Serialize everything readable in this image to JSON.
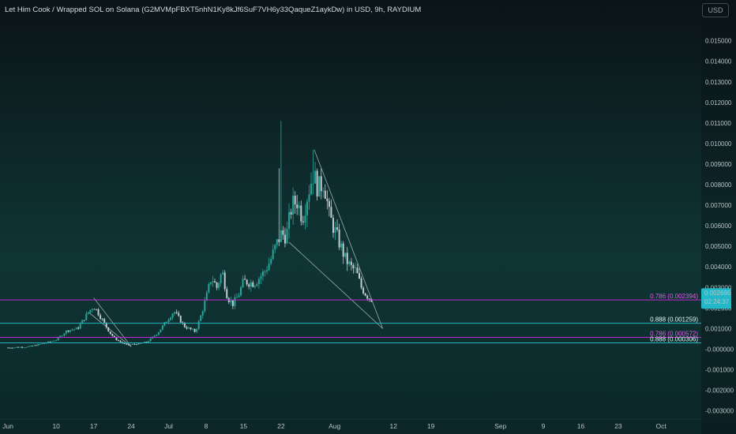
{
  "chart_title": "Let Him Cook / Wrapped SOL on Solana (G2MVMpFBXT5nhN1Ky8kJf6SuF7VH6y33QaqueZ1aykDw) in USD, 9h, RAYDIUM",
  "currency_button": "USD",
  "colors": {
    "up": "#26a69a",
    "down": "#c3cdd0",
    "fib_magenta": "#c026d3",
    "fib_cyan": "#2ab3c4",
    "price_tag": "#22b8c9"
  },
  "chart_data": {
    "type": "candlestick",
    "title": "Let Him Cook / Wrapped SOL on Solana (G2MVMpFBXT5nhN1Ky8kJf6SuF7VH6y33QaqueZ1aykDw) in USD, 9h, RAYDIUM",
    "currency": "USD",
    "y_ticks": [
      "0.015000",
      "0.014000",
      "0.013000",
      "0.012000",
      "0.011000",
      "0.010000",
      "0.009000",
      "0.008000",
      "0.007000",
      "0.006000",
      "0.005000",
      "0.004000",
      "0.003000",
      "0.002000",
      "0.001000",
      "-0.000000",
      "-0.001000",
      "-0.002000",
      "-0.003000"
    ],
    "y_tick_values": [
      0.015,
      0.014,
      0.013,
      0.012,
      0.011,
      0.01,
      0.009,
      0.008,
      0.007,
      0.006,
      0.005,
      0.004,
      0.003,
      0.002,
      0.001,
      0,
      -0.001,
      -0.002,
      -0.003
    ],
    "ylim": [
      -0.0034,
      0.0166
    ],
    "x_labels": [
      "Jun",
      "10",
      "17",
      "24",
      "Jul",
      "8",
      "15",
      "22",
      "Aug",
      "12",
      "19",
      "Sep",
      "9",
      "16",
      "23",
      "Oct"
    ],
    "x_label_days": [
      0,
      9,
      16,
      23,
      30,
      37,
      44,
      51,
      61,
      72,
      79,
      92,
      100,
      107,
      114,
      122
    ],
    "xlim": [
      -1.5,
      129.5
    ],
    "price_path": [
      [
        0,
        7e-05
      ],
      [
        4,
        0.00012
      ],
      [
        7,
        0.0003
      ],
      [
        9,
        0.00045
      ],
      [
        11,
        0.0009
      ],
      [
        13,
        0.001
      ],
      [
        15,
        0.0018
      ],
      [
        16,
        0.0021
      ],
      [
        17,
        0.0017
      ],
      [
        19,
        0.0008
      ],
      [
        20,
        0.0005
      ],
      [
        22,
        0.0002
      ],
      [
        24,
        0.00025
      ],
      [
        26,
        0.00035
      ],
      [
        28,
        0.0008
      ],
      [
        30,
        0.0015
      ],
      [
        31,
        0.00185
      ],
      [
        33,
        0.0011
      ],
      [
        35,
        0.00085
      ],
      [
        36,
        0.0016
      ],
      [
        37,
        0.0025
      ],
      [
        38,
        0.0035
      ],
      [
        39,
        0.003
      ],
      [
        40,
        0.0038
      ],
      [
        41,
        0.0025
      ],
      [
        42,
        0.0022
      ],
      [
        43,
        0.0026
      ],
      [
        44,
        0.0033
      ],
      [
        46,
        0.0032
      ],
      [
        48,
        0.0038
      ],
      [
        49,
        0.0043
      ],
      [
        50,
        0.005
      ],
      [
        51,
        0.0056
      ],
      [
        52,
        0.0055
      ],
      [
        53,
        0.007
      ],
      [
        54,
        0.0072
      ],
      [
        55,
        0.0064
      ],
      [
        56,
        0.0076
      ],
      [
        57,
        0.0085
      ],
      [
        58,
        0.0078
      ],
      [
        59,
        0.0082
      ],
      [
        60,
        0.0065
      ],
      [
        61,
        0.0058
      ],
      [
        62,
        0.0051
      ],
      [
        63,
        0.0044
      ],
      [
        64,
        0.004
      ],
      [
        65,
        0.0038
      ],
      [
        66,
        0.003
      ],
      [
        67,
        0.0026
      ],
      [
        68,
        0.0024
      ]
    ],
    "last_price": "0.002695",
    "countdown": "02:24:37",
    "fib_levels": [
      {
        "label": "0.786 (0.002394)",
        "value": 0.002394,
        "color": "#c026d3"
      },
      {
        "label": "0.888 (0.001259)",
        "value": 0.001259,
        "color": "#2ab3c4"
      },
      {
        "label": "0.786 (0.000572)",
        "value": 0.000572,
        "color": "#c026d3"
      },
      {
        "label": "0.888 (0.000306)",
        "value": 0.000306,
        "color": "#2ab3c4"
      }
    ]
  }
}
